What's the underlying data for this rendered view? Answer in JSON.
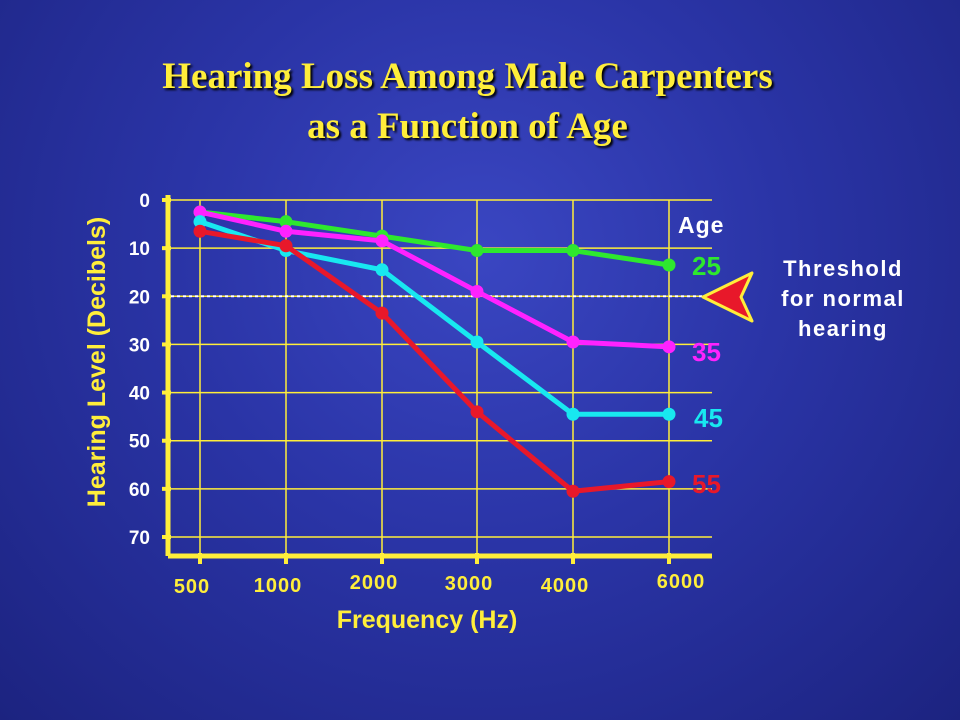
{
  "title_line1": "Hearing Loss Among Male Carpenters",
  "title_line2": "as a Function of Age",
  "chart_data": {
    "type": "line",
    "title": "Hearing Loss Among Male Carpenters as a Function of Age",
    "xlabel": "Frequency (Hz)",
    "ylabel": "Hearing Level (Decibels)",
    "categories": [
      "500",
      "1000",
      "2000",
      "3000",
      "4000",
      "6000"
    ],
    "y_ticks": [
      "0",
      "10",
      "20",
      "30",
      "40",
      "50",
      "60",
      "70"
    ],
    "ylim": [
      0,
      70
    ],
    "y_inverted": true,
    "grid": true,
    "legend_title": "Age",
    "series": [
      {
        "name": "25",
        "color": "#2ee82e",
        "values": [
          2.5,
          4.5,
          7.5,
          10.5,
          10.5,
          13.5
        ]
      },
      {
        "name": "35",
        "color": "#ff22ff",
        "values": [
          2.5,
          6.5,
          8.5,
          19,
          29.5,
          30.5
        ]
      },
      {
        "name": "45",
        "color": "#18e8f0",
        "values": [
          4.5,
          10.5,
          14.5,
          29.5,
          44.5,
          44.5
        ]
      },
      {
        "name": "55",
        "color": "#e8182a",
        "values": [
          6.5,
          9.5,
          23.5,
          44,
          60.5,
          58.5
        ]
      }
    ],
    "threshold": {
      "value": 20,
      "label_lines": [
        "Threshold",
        "for  normal",
        "hearing"
      ]
    }
  },
  "colors": {
    "axis": "#ffee3a",
    "grid": "#ffee3a",
    "threshold_line": "#ffffff",
    "arrow_fill": "#e8182a",
    "arrow_outline": "#ffee3a"
  }
}
